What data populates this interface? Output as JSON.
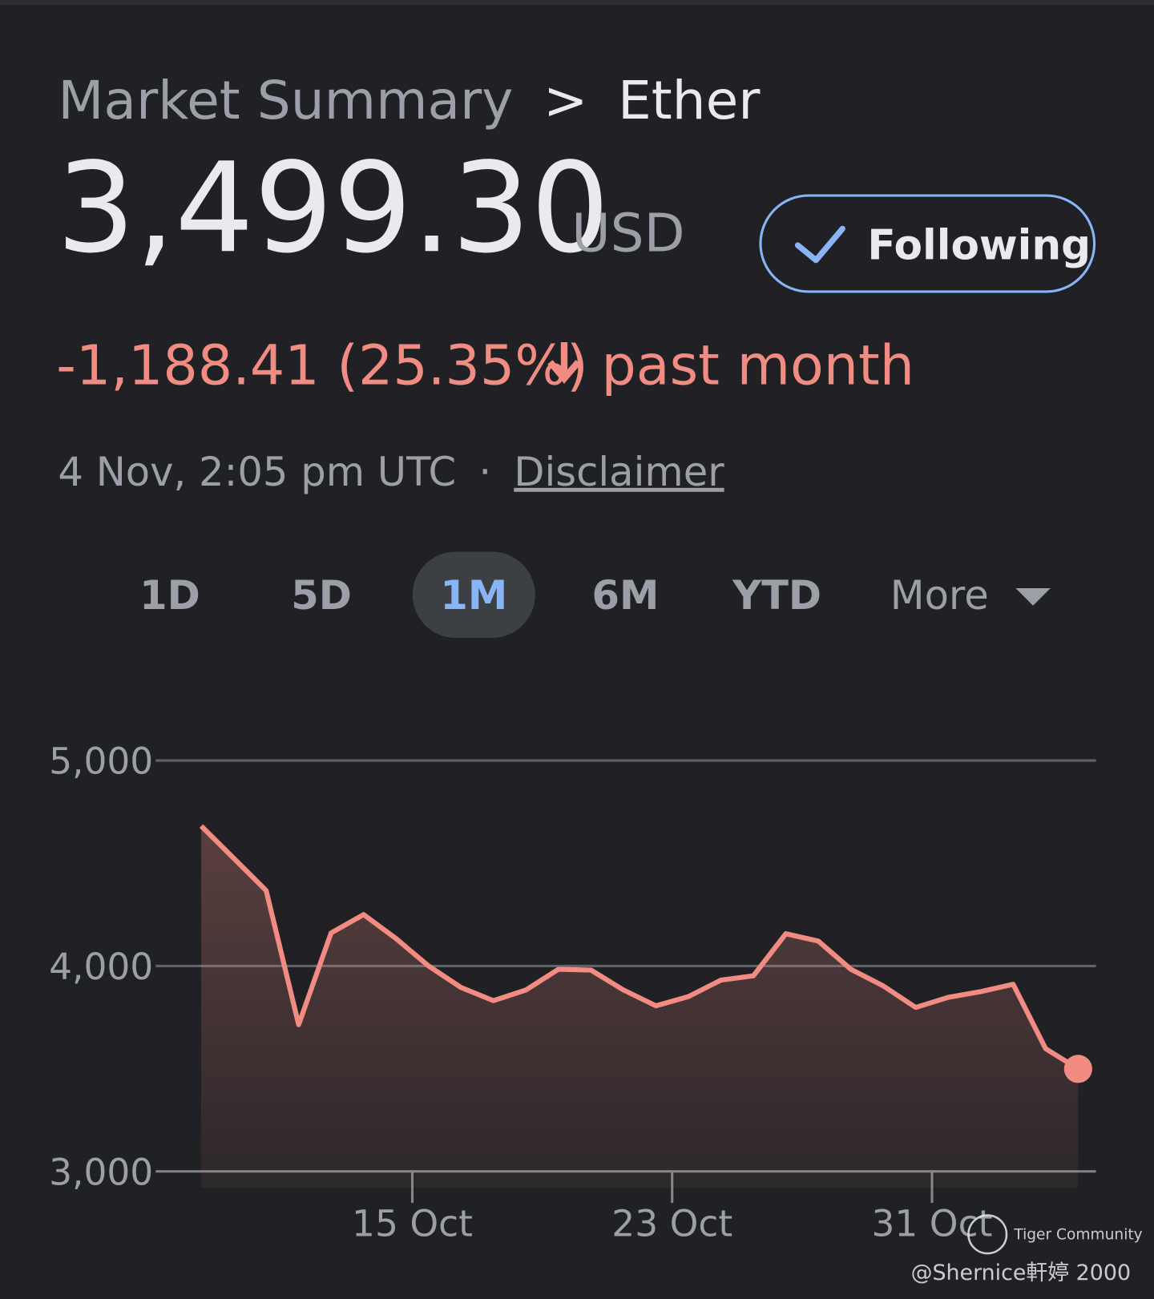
{
  "header": {
    "breadcrumb": "Market Summary",
    "separator": ">",
    "asset": "Ether"
  },
  "quote": {
    "price": "3,499.30",
    "currency": "USD",
    "follow_button": "Following",
    "change": "-1,188.41 (25.35%)",
    "period": "past month",
    "timestamp": "4 Nov, 2:05 pm UTC",
    "dot": "·",
    "disclaimer": "Disclaimer"
  },
  "range_tabs": [
    "1D",
    "5D",
    "1M",
    "6M",
    "YTD",
    "More"
  ],
  "selected_tab": "1M",
  "chart_data": {
    "type": "line",
    "color": "#f28b82",
    "grid": true,
    "x": [
      8.5,
      9.5,
      10.5,
      11.5,
      12.5,
      13.5,
      14.5,
      15.5,
      16.5,
      17.5,
      18.5,
      19.5,
      20.5,
      21.5,
      22.5,
      23.5,
      24.5,
      25.5,
      26.5,
      27.5,
      28.5,
      29.5,
      30.5,
      31.5,
      32.5,
      33.5,
      34.5,
      35.5
    ],
    "values": [
      4681,
      4524,
      4367,
      3714,
      4161,
      4250,
      4133,
      4000,
      3895,
      3831,
      3883,
      3984,
      3980,
      3883,
      3806,
      3851,
      3931,
      3952,
      4157,
      4121,
      3984,
      3903,
      3798,
      3847,
      3875,
      3911,
      3597,
      3499
    ],
    "xlim": [
      7.1,
      36.05
    ],
    "xticks": [
      {
        "value": 15,
        "label": "15 Oct"
      },
      {
        "value": 23,
        "label": "23 Oct"
      },
      {
        "value": 31,
        "label": "31 Oct"
      }
    ],
    "ylim": [
      3000,
      5000
    ],
    "yticks": [
      {
        "value": 3000,
        "label": "3,000"
      },
      {
        "value": 4000,
        "label": "4,000"
      },
      {
        "value": 5000,
        "label": "5,000"
      }
    ]
  },
  "watermark": {
    "brand": "Tiger Community",
    "author": "@Shernice軒婷 2000"
  }
}
